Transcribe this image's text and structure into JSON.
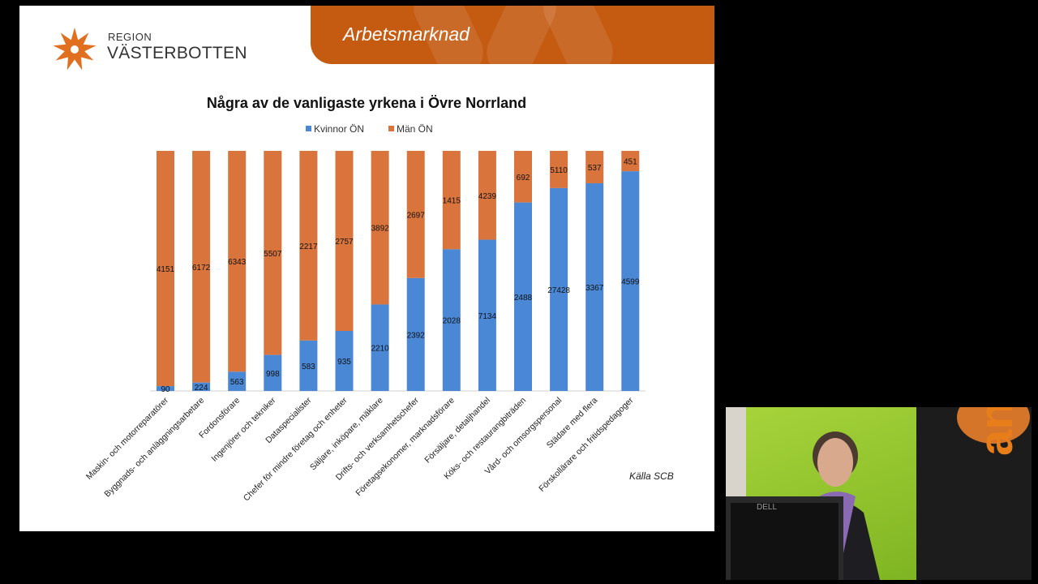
{
  "header": {
    "title": "Arbetsmarknad"
  },
  "brand": {
    "line1": "REGION",
    "line2": "VÄSTERBOTTEN"
  },
  "colors": {
    "accent": "#c55a11",
    "women": "#4a88d6",
    "men": "#d9743d"
  },
  "source": "Källa SCB",
  "chart_data": {
    "type": "bar",
    "stacked": true,
    "percent_stacked": true,
    "title": "Några av de vanligaste yrkena i Övre Norrland",
    "legend_position": "top",
    "grid": false,
    "categories": [
      "Maskin- och motorreparatörer",
      "Byggnads- och anläggningsarbetare",
      "Fordonsförare",
      "Ingenjörer och tekniker",
      "Dataspecialister",
      "Chefer för mindre företag och enheter",
      "Säljare, inköpare, mäklare",
      "Drifts- och verksamhetschefer",
      "Företagsekonomer, marknadsförare",
      "Försäljare, detaljhandel",
      "Köks- och restaurangbiträden",
      "Vård- och omsorgspersonal",
      "Städare med flera",
      "Förskollärare och fritidspedagoger"
    ],
    "series": [
      {
        "name": "Kvinnor ÖN",
        "color": "#4a88d6",
        "labels": [
          90,
          224,
          563,
          998,
          583,
          935,
          2210,
          2392,
          2028,
          7134,
          2488,
          27428,
          3367,
          4599
        ],
        "share": [
          0.02,
          0.035,
          0.08,
          0.15,
          0.21,
          0.25,
          0.36,
          0.47,
          0.59,
          0.63,
          0.785,
          0.845,
          0.865,
          0.915
        ]
      },
      {
        "name": "Män ÖN",
        "color": "#d9743d",
        "labels": [
          4151,
          6172,
          6343,
          5507,
          2217,
          2757,
          3892,
          2697,
          1415,
          4239,
          692,
          5110,
          537,
          451
        ],
        "share": [
          0.98,
          0.965,
          0.92,
          0.85,
          0.79,
          0.75,
          0.64,
          0.53,
          0.41,
          0.37,
          0.215,
          0.155,
          0.135,
          0.085
        ]
      }
    ]
  }
}
